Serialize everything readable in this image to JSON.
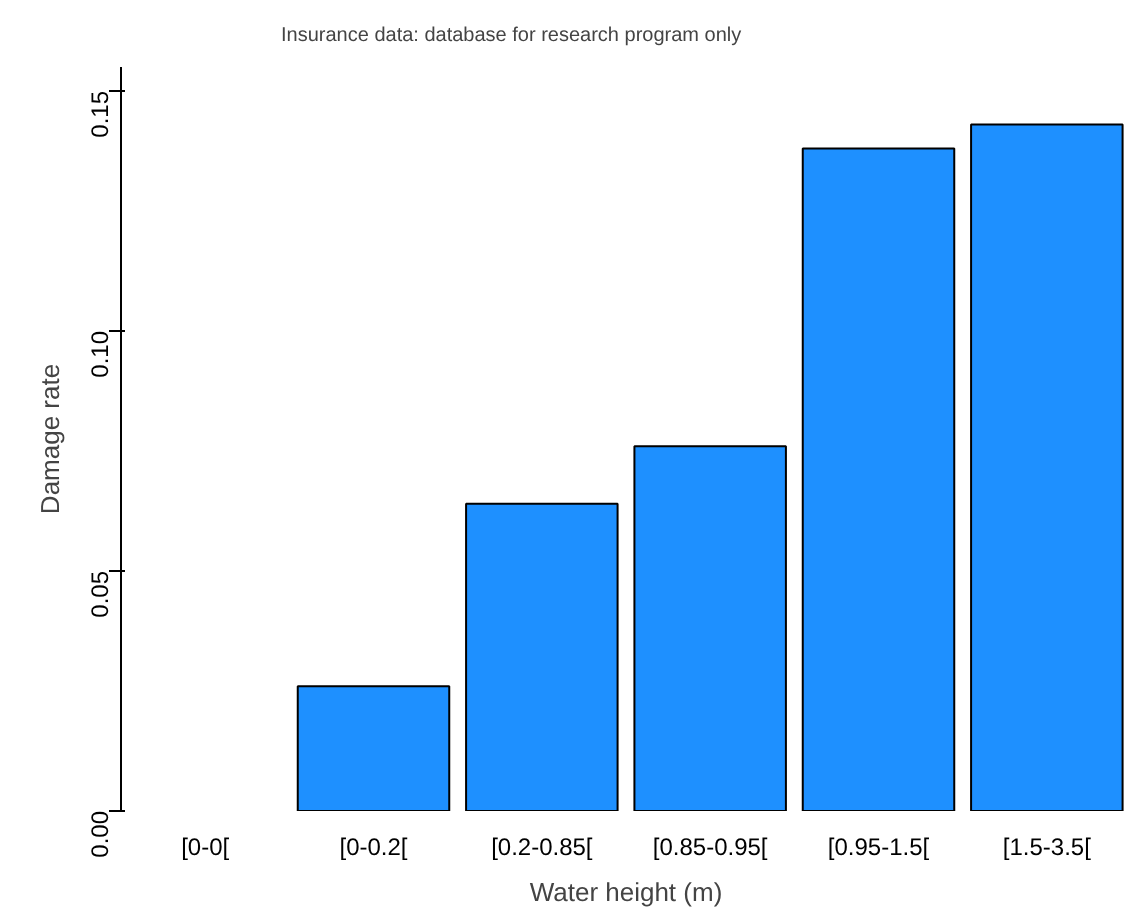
{
  "chart_data": {
    "type": "bar",
    "xlabel": "Water height (m)",
    "ylabel": "Damage rate",
    "categories": [
      "[0-0[",
      "[0-0.2[",
      "[0.2-0.85[",
      "[0.85-0.95[",
      "[0.95-1.5[",
      "[1.5-3.5["
    ],
    "values": [
      null,
      0.026,
      0.064,
      0.076,
      0.138,
      0.143
    ],
    "color": "#1e90ff",
    "ylim": [
      0,
      0.155
    ],
    "yticks": [
      {
        "value": 0,
        "label": "0.00"
      },
      {
        "value": 0.05,
        "label": "0.05"
      },
      {
        "value": 0.1,
        "label": "0.10"
      },
      {
        "value": 0.15,
        "label": "0.15"
      }
    ],
    "grid": false,
    "annotations": [
      "Insurance data: database for research program only"
    ]
  }
}
